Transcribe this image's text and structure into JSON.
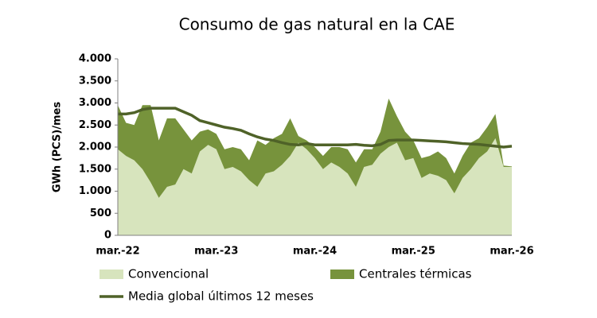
{
  "chart_data": {
    "type": "area",
    "title": "Consumo de gas natural en la CAE",
    "y_label": "GWh (PCS)/mes",
    "categories": [
      "mar.-22",
      null,
      null,
      null,
      null,
      null,
      null,
      null,
      null,
      null,
      null,
      null,
      "mar.-23",
      null,
      null,
      null,
      null,
      null,
      null,
      null,
      null,
      null,
      null,
      null,
      "mar.-24",
      null,
      null,
      null,
      null,
      null,
      null,
      null,
      null,
      null,
      null,
      null,
      "mar.-25",
      null,
      null,
      null,
      null,
      null,
      null,
      null,
      null,
      null,
      null,
      null,
      "mar.-26"
    ],
    "series": [
      {
        "name": "Convencional",
        "color": "#d7e4bd",
        "stacked": true,
        "values": [
          1950,
          1800,
          1700,
          1500,
          1200,
          850,
          1100,
          1150,
          1500,
          1400,
          1900,
          2050,
          1950,
          1500,
          1550,
          1450,
          1250,
          1100,
          1400,
          1450,
          1600,
          1800,
          2100,
          1950,
          1750,
          1500,
          1650,
          1550,
          1400,
          1100,
          1550,
          1600,
          1850,
          2000,
          2100,
          1700,
          1750,
          1300,
          1400,
          1350,
          1250,
          950,
          1300,
          1500,
          1750,
          1900,
          2200,
          1550,
          1550
        ]
      },
      {
        "name": "Centrales térmicas",
        "color": "#77933c",
        "stacked": true,
        "values": [
          1000,
          750,
          800,
          1450,
          1750,
          1300,
          1550,
          1500,
          900,
          750,
          450,
          350,
          350,
          450,
          450,
          500,
          450,
          1050,
          650,
          750,
          700,
          850,
          150,
          200,
          250,
          300,
          350,
          450,
          550,
          550,
          400,
          350,
          500,
          1100,
          600,
          650,
          400,
          450,
          400,
          550,
          500,
          450,
          500,
          600,
          450,
          550,
          550,
          30,
          10
        ]
      },
      {
        "name": "Media global últimos 12 meses",
        "color": "#4f6228",
        "type": "line",
        "values": [
          2750,
          2750,
          2780,
          2850,
          2880,
          2880,
          2880,
          2880,
          2800,
          2720,
          2600,
          2550,
          2500,
          2450,
          2420,
          2380,
          2300,
          2230,
          2180,
          2150,
          2100,
          2060,
          2050,
          2080,
          2050,
          2050,
          2050,
          2050,
          2050,
          2060,
          2040,
          2030,
          2060,
          2150,
          2160,
          2160,
          2160,
          2150,
          2140,
          2130,
          2120,
          2100,
          2080,
          2070,
          2060,
          2040,
          2020,
          2000,
          2020
        ]
      }
    ],
    "ylim": [
      0,
      4000
    ],
    "yticks": [
      0,
      500,
      {
        "value": 1000,
        "label": "1.000"
      },
      {
        "value": 1500,
        "label": "1.500"
      },
      {
        "value": 2000,
        "label": "2.000"
      },
      {
        "value": 2500,
        "label": "2.500"
      },
      {
        "value": 3000,
        "label": "3.000"
      },
      {
        "value": 3500,
        "label": "3.500"
      },
      {
        "value": 4000,
        "label": "4.000"
      }
    ],
    "grid": false,
    "legend": "bottom"
  }
}
